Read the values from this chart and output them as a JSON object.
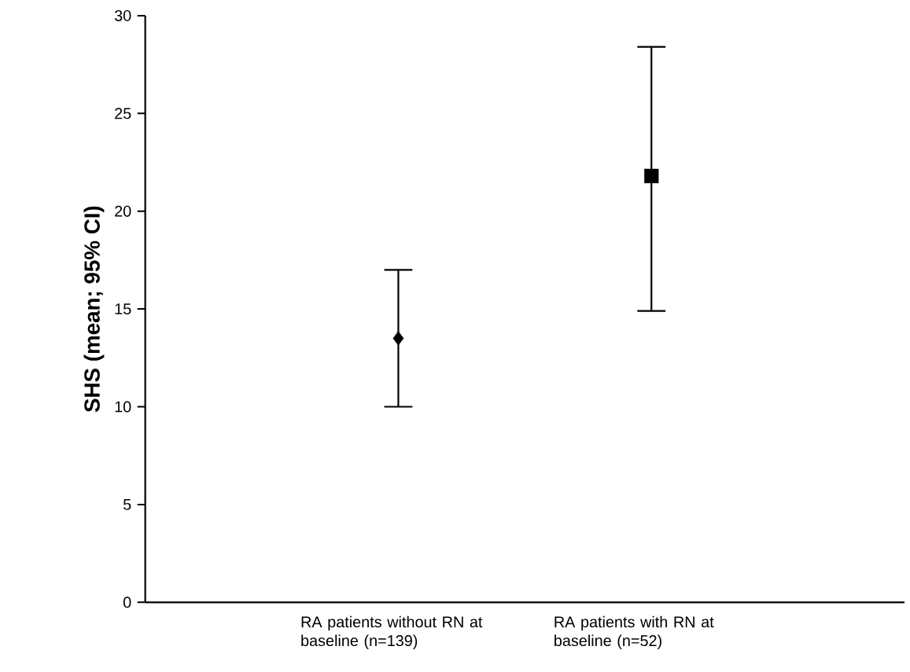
{
  "chart_data": {
    "type": "scatter",
    "ylabel": "SHS (mean; 95% CI)",
    "categories": [
      "RA patients without RN at baseline (n=139)",
      "RA patients with RN at baseline (n=52)"
    ],
    "series": [
      {
        "color": "#000000",
        "marker": "diamond",
        "values": [
          13.5,
          null
        ],
        "errors": [
          [
            10.0,
            17.0
          ],
          null
        ]
      },
      {
        "color": "#000000",
        "marker": "square",
        "values": [
          null,
          21.8
        ],
        "errors": [
          null,
          [
            14.9,
            28.4
          ]
        ]
      }
    ],
    "ylim": [
      0,
      30
    ],
    "yticks": [
      0,
      5,
      10,
      15,
      20,
      25,
      30
    ]
  }
}
